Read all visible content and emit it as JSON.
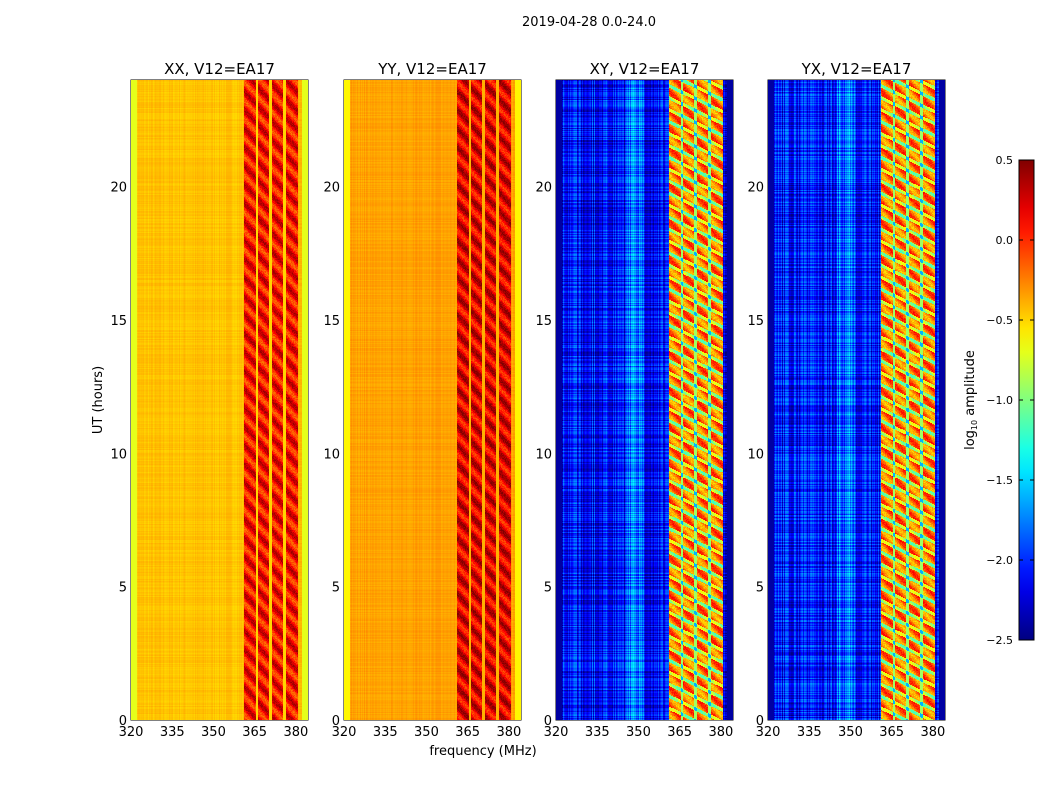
{
  "chart_data": {
    "type": "heatmap",
    "suptitle": "2019-04-28 0.0-24.0",
    "xlabel": "frequency (MHz)",
    "ylabel": "UT (hours)",
    "xlim": [
      320,
      384.4
    ],
    "ylim": [
      0,
      24
    ],
    "xticks": [
      "320",
      "335",
      "350",
      "365",
      "380"
    ],
    "xtick_values": [
      320,
      335,
      350,
      365,
      380
    ],
    "yticks": [
      "0",
      "5",
      "10",
      "15",
      "20"
    ],
    "ytick_values": [
      0,
      5,
      10,
      15,
      20
    ],
    "panels": [
      {
        "title": "XX, V12=EA17",
        "base_level": -0.45,
        "band_level": 0.1,
        "edge_level": -0.7
      },
      {
        "title": "YY, V12=EA17",
        "base_level": -0.35,
        "band_level": 0.2,
        "edge_level": -0.6
      },
      {
        "title": "XY, V12=EA17",
        "base_level": -2.1,
        "band_level": -0.2,
        "edge_level": -2.4
      },
      {
        "title": "YX, V12=EA17",
        "base_level": -2.1,
        "band_level": -0.2,
        "edge_level": -2.4
      }
    ],
    "bright_band_mhz": [
      361,
      380.5
    ],
    "band_gaps_mhz": [
      365.7,
      370.5,
      375.6
    ],
    "flagged_times_hours": [
      0.4,
      0.9,
      2.0,
      3.3,
      3.5,
      4.0,
      4.2,
      5.0,
      5.2,
      5.5,
      5.8,
      6.2,
      6.5,
      6.9,
      7.7,
      8.6,
      9.6,
      10.4,
      11.8,
      12.8,
      13.4,
      14.3,
      15.0,
      16.2,
      17.3,
      17.7,
      18.3,
      19.0,
      20.0,
      20.6,
      21.2,
      21.9,
      22.5,
      23.1,
      23.7
    ],
    "colorbar": {
      "label": "log10 amplitude",
      "label_base": "log",
      "label_sub": "10",
      "label_rest": " amplitude",
      "range": [
        -2.5,
        0.5
      ],
      "ticks": [
        "0.5",
        "0.0",
        "−0.5",
        "−1.0",
        "−1.5",
        "−2.0",
        "−2.5"
      ],
      "tick_values": [
        0.5,
        0.0,
        -0.5,
        -1.0,
        -1.5,
        -2.0,
        -2.5
      ],
      "colormap": "jet"
    }
  }
}
